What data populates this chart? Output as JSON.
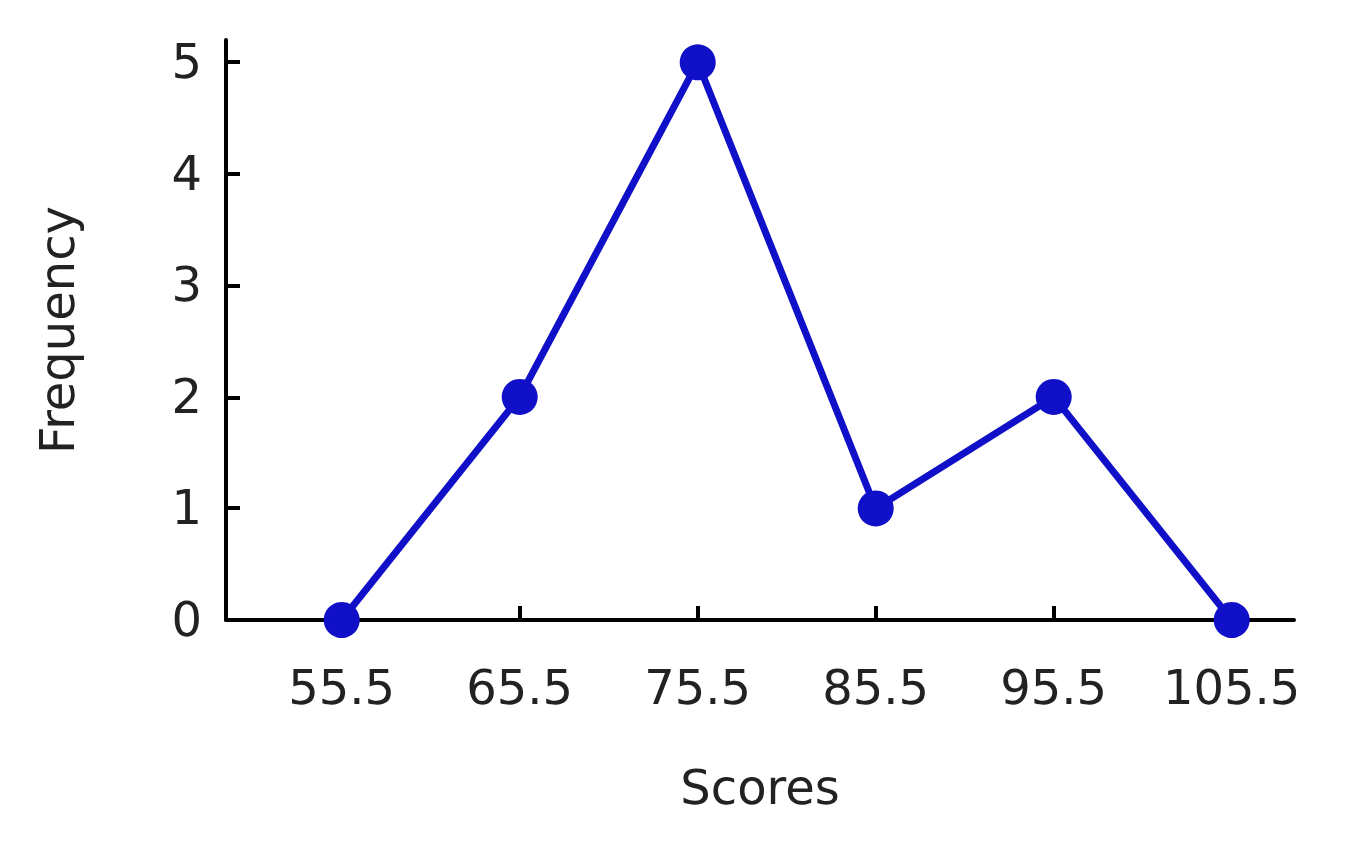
{
  "chart_data": {
    "type": "line",
    "xlabel": "Scores",
    "ylabel": "Frequency",
    "x": [
      55.5,
      65.5,
      75.5,
      85.5,
      95.5,
      105.5
    ],
    "values": [
      0,
      2,
      5,
      1,
      2,
      0
    ],
    "color": "#1010c8",
    "xlim": [
      49,
      109
    ],
    "xticks": [
      55.5,
      65.5,
      75.5,
      85.5,
      95.5,
      105.5
    ],
    "ylim": [
      0,
      5.2
    ],
    "yticks": [
      0,
      1,
      2,
      3,
      4,
      5
    ],
    "grid": false,
    "marker": "circle",
    "line_style": "solid"
  }
}
